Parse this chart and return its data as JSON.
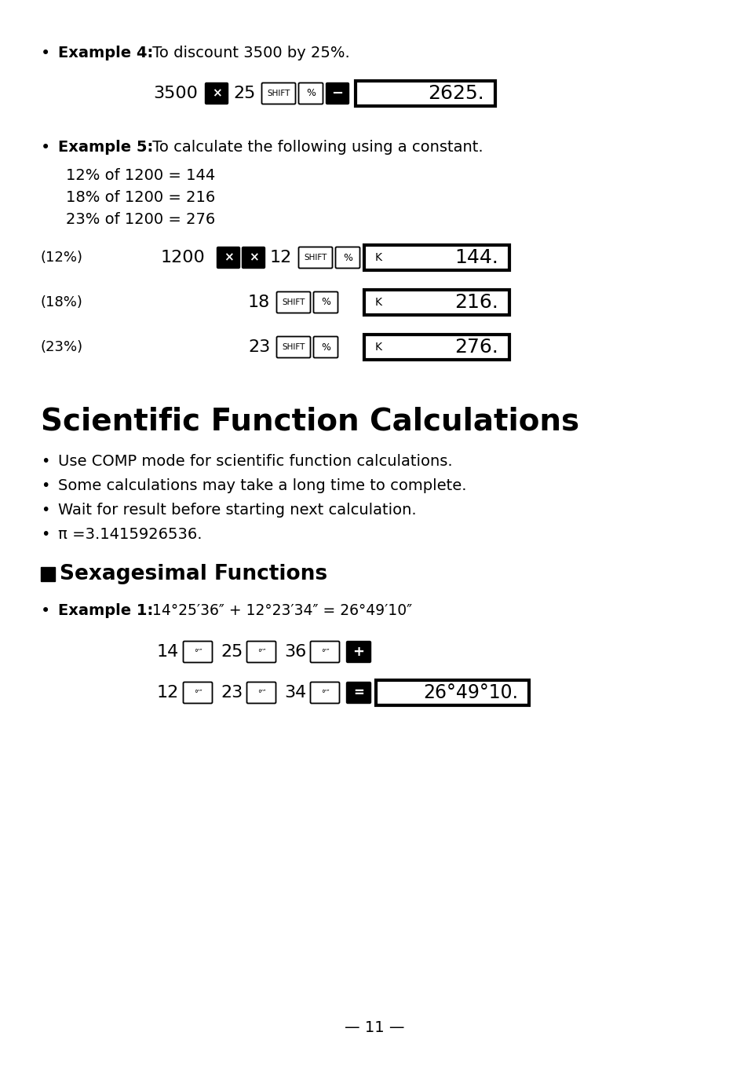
{
  "bg_color": "#ffffff",
  "text_color": "#000000",
  "page_number": "— 11 —",
  "section_title": "Scientific Function Calculations",
  "bullets": [
    "Use COMP mode for scientific function calculations.",
    "Some calculations may take a long time to complete.",
    "Wait for result before starting next calculation.",
    "π =3.1415926536."
  ],
  "example5_lines": [
    "12% of 1200 = 144",
    "18% of 1200 = 216",
    "23% of 1200 = 276"
  ],
  "ex1_result": "26°49°10."
}
